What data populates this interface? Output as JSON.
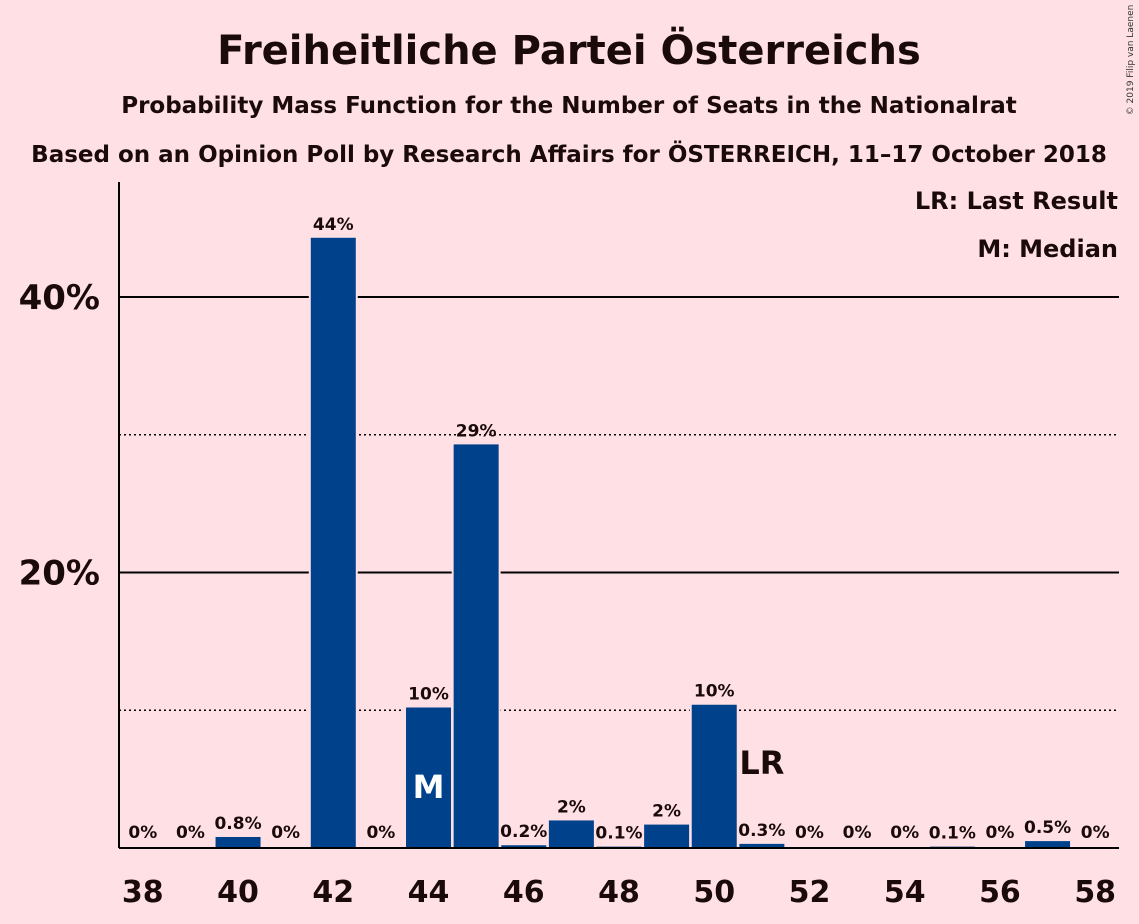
{
  "title": "Freiheitliche Partei Österreichs",
  "subtitle1": "Probability Mass Function for the Number of Seats in the Nationalrat",
  "subtitle2": "Based on an Opinion Poll by Research Affairs for ÖSTERREICH, 11–17 October 2018",
  "legend": {
    "last_result": "LR: Last Result",
    "median": "M: Median"
  },
  "copyright": "© 2019 Filip van Laenen",
  "colors": {
    "background": "#FFE1E5",
    "bar": "#00418C",
    "text": "#1a0a0a"
  },
  "chart_data": {
    "type": "bar",
    "x": [
      38,
      39,
      40,
      41,
      42,
      43,
      44,
      45,
      46,
      47,
      48,
      49,
      50,
      51,
      52,
      53,
      54,
      55,
      56,
      57,
      58
    ],
    "values": [
      0,
      0,
      0.8,
      0,
      44.3,
      0,
      10.2,
      29.3,
      0.2,
      2.0,
      0.1,
      1.7,
      10.4,
      0.3,
      0,
      0,
      0,
      0.1,
      0,
      0.5,
      0
    ],
    "labels": [
      "0%",
      "0%",
      "0.8%",
      "0%",
      "44%",
      "0%",
      "10%",
      "29%",
      "0.2%",
      "2%",
      "0.1%",
      "2%",
      "10%",
      "0.3%",
      "0%",
      "0%",
      "0%",
      "0.1%",
      "0%",
      "0.5%",
      "0%"
    ],
    "x_ticks": [
      "38",
      "40",
      "42",
      "44",
      "46",
      "48",
      "50",
      "52",
      "54",
      "56",
      "58"
    ],
    "y_ticks": [
      {
        "value": 20,
        "label": "20%"
      },
      {
        "value": 40,
        "label": "40%"
      }
    ],
    "dotted_gridlines": [
      10,
      30
    ],
    "ylim": [
      0,
      48
    ],
    "median_seat": 44,
    "median_marker": "M",
    "last_result_seat": 51,
    "last_result_marker": "LR"
  }
}
